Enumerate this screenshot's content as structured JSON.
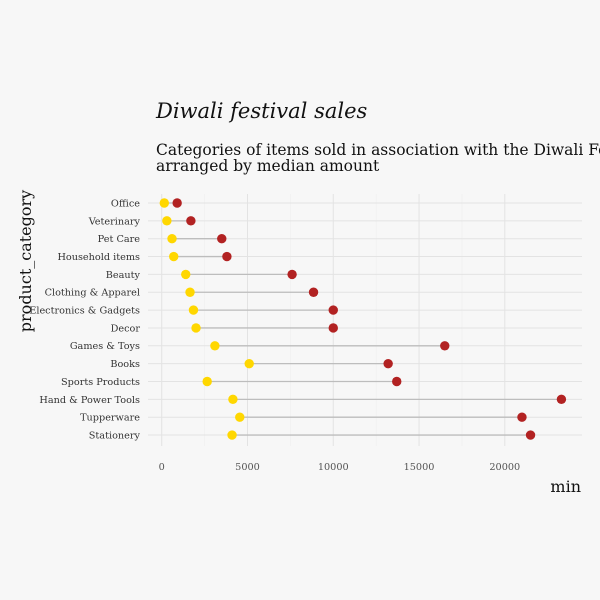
{
  "chart_data": {
    "type": "dumbbell",
    "title": "Diwali festival sales",
    "subtitle_lines": [
      "Categories of items sold in association with the Diwali Festival,",
      "arranged by median amount"
    ],
    "xlabel": "min",
    "ylabel": "product_category",
    "xlim": [
      -800,
      24500
    ],
    "x_ticks": [
      0,
      5000,
      10000,
      15000,
      20000
    ],
    "x_tick_labels": [
      "0",
      "5000",
      "10000",
      "15000",
      "20000"
    ],
    "grid": true,
    "colors": {
      "low": "#FFD700",
      "high": "#B22222",
      "segment": "#bdbdbd",
      "background": "#f7f7f7"
    },
    "categories": [
      "Office",
      "Veterinary",
      "Pet Care",
      "Household items",
      "Beauty",
      "Clothing & Apparel",
      "Electronics & Gadgets",
      "Decor",
      "Games & Toys",
      "Books",
      "Sports Products",
      "Hand & Power Tools",
      "Tupperware",
      "Stationery"
    ],
    "low_values": [
      150,
      300,
      600,
      700,
      1400,
      1650,
      1850,
      2000,
      3100,
      5100,
      2650,
      4150,
      4550,
      4100
    ],
    "high_values": [
      900,
      1700,
      3500,
      3800,
      7600,
      8850,
      10000,
      10000,
      16500,
      13200,
      13700,
      23300,
      21000,
      21500
    ]
  }
}
